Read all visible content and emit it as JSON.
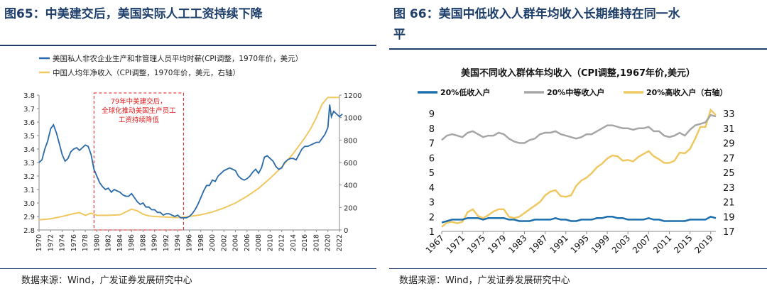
{
  "left": {
    "figure_title": "图65：中美建交后，美国实际人工工资持续下降",
    "source": "数据来源：Wind，广发证券发展研究中心",
    "annotation_lines": [
      "79年中美建交后，",
      "全球化推动美国生产员工",
      "工资持续降低"
    ],
    "colors": {
      "blue": "#2a6aa8",
      "gold": "#f0c862",
      "annotation": "#e21a1a"
    }
  },
  "right": {
    "figure_title_line1": "图 66：美国中低收入人群年均收入长期维持在同一水",
    "figure_title_line2": "平",
    "source": "数据来源：Wind，广发证券发展研究中心",
    "colors": {
      "blue": "#1b6fae",
      "gray": "#a6a6a6",
      "gold": "#f0c862"
    }
  },
  "chart_data": [
    {
      "type": "line",
      "title": "",
      "legend": [
        "美国私人非农企业生产和非管理人员平均时薪(CPI调整，1970年价，美元）",
        "中国人均年净收入（CPI调整，1970年价，美元，右轴）"
      ],
      "x_ticks": [
        "1970",
        "1972",
        "1974",
        "1976",
        "1978",
        "1980",
        "1982",
        "1984",
        "1986",
        "1988",
        "1990",
        "1992",
        "1994",
        "1996",
        "1998",
        "2000",
        "2002",
        "2004",
        "2006",
        "2008",
        "2010",
        "2012",
        "2014",
        "2016",
        "2018",
        "2020",
        "2022"
      ],
      "ylim_left": [
        2.8,
        3.8
      ],
      "y_ticks_left": [
        "2.8",
        "2.9",
        "3.0",
        "3.1",
        "3.2",
        "3.3",
        "3.4",
        "3.5",
        "3.6",
        "3.7",
        "3.8"
      ],
      "ylim_right": [
        0,
        1200
      ],
      "y_ticks_right": [
        "0",
        "200",
        "400",
        "600",
        "800",
        "1000",
        "1200"
      ],
      "series": [
        {
          "name": "美国私人非农企业生产和非管理人员平均时薪(CPI调整，1970年价，美元）",
          "axis": "left",
          "x": [
            1970,
            1970.5,
            1971,
            1971.5,
            1972,
            1972.5,
            1973,
            1973.5,
            1974,
            1974.5,
            1975,
            1975.5,
            1976,
            1976.5,
            1977,
            1977.5,
            1978,
            1978.5,
            1979,
            1979.5,
            1980,
            1980.5,
            1981,
            1981.5,
            1982,
            1982.5,
            1983,
            1983.5,
            1984,
            1984.5,
            1985,
            1985.5,
            1986,
            1986.5,
            1987,
            1987.5,
            1988,
            1988.5,
            1989,
            1989.5,
            1990,
            1990.5,
            1991,
            1991.5,
            1992,
            1992.5,
            1993,
            1993.5,
            1994,
            1994.5,
            1995,
            1995.5,
            1996,
            1996.5,
            1997,
            1997.5,
            1998,
            1998.5,
            1999,
            1999.5,
            2000,
            2000.5,
            2001,
            2001.5,
            2002,
            2002.5,
            2003,
            2003.5,
            2004,
            2004.5,
            2005,
            2005.5,
            2006,
            2006.5,
            2007,
            2007.5,
            2008,
            2008.5,
            2009,
            2009.5,
            2010,
            2010.5,
            2011,
            2011.5,
            2012,
            2012.5,
            2013,
            2013.5,
            2014,
            2014.5,
            2015,
            2015.5,
            2016,
            2016.5,
            2017,
            2017.5,
            2018,
            2018.5,
            2019,
            2019.5,
            2020,
            2020.3,
            2020.6,
            2021,
            2021.5,
            2022,
            2022.5
          ],
          "y": [
            3.3,
            3.32,
            3.4,
            3.46,
            3.55,
            3.58,
            3.52,
            3.44,
            3.36,
            3.31,
            3.33,
            3.38,
            3.4,
            3.41,
            3.39,
            3.41,
            3.43,
            3.42,
            3.36,
            3.25,
            3.2,
            3.15,
            3.12,
            3.1,
            3.11,
            3.08,
            3.1,
            3.09,
            3.08,
            3.06,
            3.05,
            3.05,
            3.07,
            3.04,
            3.01,
            2.99,
            3.0,
            2.97,
            2.97,
            2.95,
            2.95,
            2.93,
            2.93,
            2.91,
            2.92,
            2.92,
            2.91,
            2.9,
            2.91,
            2.89,
            2.89,
            2.89,
            2.9,
            2.92,
            2.95,
            2.99,
            3.04,
            3.09,
            3.13,
            3.13,
            3.17,
            3.16,
            3.2,
            3.22,
            3.24,
            3.25,
            3.26,
            3.25,
            3.24,
            3.2,
            3.18,
            3.17,
            3.18,
            3.2,
            3.23,
            3.25,
            3.22,
            3.26,
            3.34,
            3.35,
            3.33,
            3.31,
            3.27,
            3.25,
            3.26,
            3.3,
            3.32,
            3.33,
            3.33,
            3.32,
            3.36,
            3.4,
            3.42,
            3.42,
            3.43,
            3.44,
            3.45,
            3.45,
            3.48,
            3.51,
            3.56,
            3.73,
            3.64,
            3.68,
            3.66,
            3.64,
            3.66
          ]
        },
        {
          "name": "中国人均年净收入（CPI调整，1970年价，美元，右轴）",
          "axis": "right",
          "x": [
            1970,
            1972,
            1974,
            1976,
            1977,
            1978,
            1979,
            1980,
            1982,
            1984,
            1985,
            1986,
            1987,
            1988,
            1989,
            1990,
            1992,
            1994,
            1995,
            1996,
            1998,
            2000,
            2002,
            2004,
            2006,
            2008,
            2010,
            2012,
            2014,
            2016,
            2017,
            2018,
            2019,
            2020,
            2021,
            2022
          ],
          "y": [
            90,
            100,
            120,
            145,
            155,
            130,
            150,
            130,
            130,
            135,
            160,
            185,
            170,
            140,
            125,
            120,
            115,
            110,
            115,
            120,
            135,
            160,
            195,
            240,
            300,
            370,
            460,
            560,
            680,
            820,
            900,
            1000,
            1120,
            1180,
            1180,
            1180
          ]
        }
      ]
    },
    {
      "type": "line",
      "title": "美国不同收入群体年均收入（CPI调整,1967年价,美元）",
      "legend": [
        "20%低收入户",
        "20%中等收入户",
        "20%高收入户（右轴）"
      ],
      "x_ticks": [
        "1967",
        "1971",
        "1975",
        "1979",
        "1983",
        "1987",
        "1991",
        "1995",
        "1999",
        "2003",
        "2007",
        "2011",
        "2015",
        "2019"
      ],
      "ylim_left": [
        1,
        9
      ],
      "y_ticks_left": [
        "1",
        "2",
        "3",
        "4",
        "5",
        "6",
        "7",
        "8",
        "9"
      ],
      "ylim_right": [
        17,
        33
      ],
      "y_ticks_right": [
        "17",
        "19",
        "21",
        "23",
        "25",
        "27",
        "29",
        "31",
        "33"
      ],
      "series": [
        {
          "name": "20%低收入户",
          "axis": "left",
          "x": [
            1967,
            1968,
            1969,
            1970,
            1971,
            1972,
            1973,
            1974,
            1975,
            1976,
            1977,
            1978,
            1979,
            1980,
            1981,
            1982,
            1983,
            1984,
            1985,
            1986,
            1987,
            1988,
            1989,
            1990,
            1991,
            1992,
            1993,
            1994,
            1995,
            1996,
            1997,
            1998,
            1999,
            2000,
            2001,
            2002,
            2003,
            2004,
            2005,
            2006,
            2007,
            2008,
            2009,
            2010,
            2011,
            2012,
            2013,
            2014,
            2015,
            2016,
            2017,
            2018,
            2019,
            2020
          ],
          "y": [
            1.6,
            1.7,
            1.8,
            1.8,
            1.8,
            1.9,
            1.9,
            1.9,
            1.8,
            1.9,
            1.9,
            1.9,
            1.9,
            1.8,
            1.8,
            1.7,
            1.7,
            1.7,
            1.8,
            1.8,
            1.8,
            1.8,
            1.9,
            1.8,
            1.8,
            1.7,
            1.7,
            1.8,
            1.8,
            1.8,
            1.9,
            1.9,
            2.0,
            2.0,
            1.9,
            1.9,
            1.8,
            1.8,
            1.8,
            1.8,
            1.9,
            1.8,
            1.8,
            1.7,
            1.7,
            1.7,
            1.7,
            1.7,
            1.8,
            1.8,
            1.8,
            1.8,
            2.0,
            1.9
          ]
        },
        {
          "name": "20%中等收入户",
          "axis": "left",
          "x": [
            1967,
            1968,
            1969,
            1970,
            1971,
            1972,
            1973,
            1974,
            1975,
            1976,
            1977,
            1978,
            1979,
            1980,
            1981,
            1982,
            1983,
            1984,
            1985,
            1986,
            1987,
            1988,
            1989,
            1990,
            1991,
            1992,
            1993,
            1994,
            1995,
            1996,
            1997,
            1998,
            1999,
            2000,
            2001,
            2002,
            2003,
            2004,
            2005,
            2006,
            2007,
            2008,
            2009,
            2010,
            2011,
            2012,
            2013,
            2014,
            2015,
            2016,
            2017,
            2018,
            2019,
            2020
          ],
          "y": [
            7.2,
            7.5,
            7.6,
            7.5,
            7.4,
            7.7,
            7.8,
            7.6,
            7.4,
            7.5,
            7.5,
            7.7,
            7.6,
            7.3,
            7.1,
            7.0,
            7.0,
            7.2,
            7.3,
            7.6,
            7.7,
            7.7,
            7.8,
            7.6,
            7.5,
            7.4,
            7.3,
            7.4,
            7.6,
            7.6,
            7.8,
            8.0,
            8.2,
            8.2,
            8.1,
            8.0,
            8.0,
            7.9,
            8.0,
            8.0,
            8.1,
            7.8,
            7.8,
            7.5,
            7.4,
            7.5,
            7.7,
            7.5,
            7.9,
            8.2,
            8.3,
            8.4,
            8.9,
            8.8
          ]
        },
        {
          "name": "20%高收入户（右轴）",
          "axis": "right",
          "x": [
            1967,
            1968,
            1969,
            1970,
            1971,
            1972,
            1973,
            1974,
            1975,
            1976,
            1977,
            1978,
            1979,
            1980,
            1981,
            1982,
            1983,
            1984,
            1985,
            1986,
            1987,
            1988,
            1989,
            1990,
            1991,
            1992,
            1993,
            1994,
            1995,
            1996,
            1997,
            1998,
            1999,
            2000,
            2001,
            2002,
            2003,
            2004,
            2005,
            2006,
            2007,
            2008,
            2009,
            2010,
            2011,
            2012,
            2013,
            2014,
            2015,
            2016,
            2017,
            2018,
            2019,
            2020
          ],
          "y": [
            17.6,
            18.2,
            18.3,
            18.1,
            18.3,
            19.6,
            20.0,
            19.1,
            18.8,
            19.2,
            19.7,
            20.0,
            20.0,
            19.0,
            18.8,
            19.0,
            19.5,
            20.0,
            20.5,
            21.0,
            21.9,
            22.4,
            22.6,
            21.8,
            21.7,
            21.9,
            23.2,
            23.9,
            24.3,
            24.9,
            25.7,
            26.2,
            26.9,
            27.3,
            27.2,
            26.6,
            26.7,
            26.5,
            27.1,
            27.5,
            27.9,
            27.2,
            26.8,
            26.3,
            26.3,
            26.6,
            27.7,
            27.6,
            28.2,
            29.6,
            31.2,
            31.2,
            33.5,
            32.8
          ]
        }
      ]
    }
  ]
}
